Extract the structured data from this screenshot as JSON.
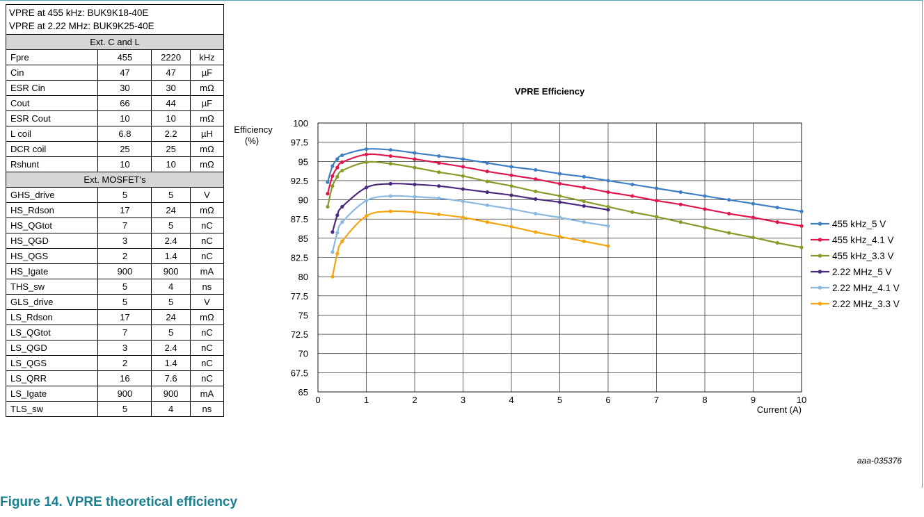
{
  "figure": {
    "caption": "Figure 14. VPRE theoretical efficiency",
    "figure_id": "aaa-035376"
  },
  "params_table": {
    "title_lines": [
      "VPRE at 455 kHz: BUK9K18-40E",
      "VPRE at 2.22 MHz: BUK9K25-40E"
    ],
    "sections": [
      {
        "header": "Ext. C and L",
        "rows": [
          [
            "Fpre",
            "455",
            "2220",
            "kHz"
          ],
          [
            "Cin",
            "47",
            "47",
            "µF"
          ],
          [
            "ESR Cin",
            "30",
            "30",
            "mΩ"
          ],
          [
            "Cout",
            "66",
            "44",
            "µF"
          ],
          [
            "ESR Cout",
            "10",
            "10",
            "mΩ"
          ],
          [
            "L coil",
            "6.8",
            "2.2",
            "µH"
          ],
          [
            "DCR coil",
            "25",
            "25",
            "mΩ"
          ],
          [
            "Rshunt",
            "10",
            "10",
            "mΩ"
          ]
        ]
      },
      {
        "header": "Ext. MOSFET's",
        "rows": [
          [
            "GHS_drive",
            "5",
            "5",
            "V"
          ],
          [
            "HS_Rdson",
            "17",
            "24",
            "mΩ"
          ],
          [
            "HS_QGtot",
            "7",
            "5",
            "nC"
          ],
          [
            "HS_QGD",
            "3",
            "2.4",
            "nC"
          ],
          [
            "HS_QGS",
            "2",
            "1.4",
            "nC"
          ],
          [
            "HS_Igate",
            "900",
            "900",
            "mA"
          ],
          [
            "THS_sw",
            "5",
            "4",
            "ns"
          ],
          [
            "GLS_drive",
            "5",
            "5",
            "V"
          ],
          [
            "LS_Rdson",
            "17",
            "24",
            "mΩ"
          ],
          [
            "LS_QGtot",
            "7",
            "5",
            "nC"
          ],
          [
            "LS_QGD",
            "3",
            "2.4",
            "nC"
          ],
          [
            "LS_QGS",
            "2",
            "1.4",
            "nC"
          ],
          [
            "LS_QRR",
            "16",
            "7.6",
            "nC"
          ],
          [
            "LS_Igate",
            "900",
            "900",
            "mA"
          ],
          [
            "TLS_sw",
            "5",
            "4",
            "ns"
          ]
        ]
      }
    ]
  },
  "chart_data": {
    "type": "line",
    "title": "VPRE Efficiency",
    "xlabel": "Current (A)",
    "ylabel_lines": [
      "Efficiency",
      "(%)"
    ],
    "xlim": [
      0,
      10
    ],
    "ylim": [
      65,
      100
    ],
    "xticks": [
      "0",
      "1",
      "2",
      "3",
      "4",
      "5",
      "6",
      "7",
      "8",
      "9",
      "10"
    ],
    "yticks": [
      "65",
      "67.5",
      "70",
      "72.5",
      "75",
      "77.5",
      "80",
      "82.5",
      "85",
      "87.5",
      "90",
      "92.5",
      "95",
      "97.5",
      "100"
    ],
    "grid": true,
    "legend_position": "right",
    "series": [
      {
        "name": "455 kHz_5 V",
        "color": "#3f7fc4",
        "x": [
          0.2,
          0.3,
          0.4,
          0.5,
          1,
          1.5,
          2,
          2.5,
          3,
          3.5,
          4,
          4.5,
          5,
          5.5,
          6,
          6.5,
          7,
          7.5,
          8,
          8.5,
          9,
          9.5,
          10
        ],
        "y": [
          92.3,
          94.4,
          95.3,
          95.8,
          96.6,
          96.5,
          96.1,
          95.7,
          95.3,
          94.8,
          94.3,
          93.9,
          93.4,
          93.0,
          92.5,
          92.0,
          91.5,
          91.0,
          90.5,
          90.0,
          89.5,
          89.0,
          88.5
        ]
      },
      {
        "name": "455 kHz_4.1 V",
        "color": "#e0174f",
        "x": [
          0.2,
          0.3,
          0.4,
          0.5,
          1,
          1.5,
          2,
          2.5,
          3,
          3.5,
          4,
          4.5,
          5,
          5.5,
          6,
          6.5,
          7,
          7.5,
          8,
          8.5,
          9,
          9.5,
          10
        ],
        "y": [
          90.8,
          93.1,
          94.2,
          94.9,
          95.9,
          95.7,
          95.3,
          94.8,
          94.3,
          93.7,
          93.2,
          92.7,
          92.1,
          91.6,
          91.0,
          90.5,
          89.9,
          89.4,
          88.8,
          88.2,
          87.7,
          87.1,
          86.6
        ]
      },
      {
        "name": "455 kHz_3.3 V",
        "color": "#8a9a2a",
        "x": [
          0.2,
          0.3,
          0.4,
          0.5,
          1,
          1.5,
          2,
          2.5,
          3,
          3.5,
          4,
          4.5,
          5,
          5.5,
          6,
          6.5,
          7,
          7.5,
          8,
          8.5,
          9,
          9.5,
          10
        ],
        "y": [
          89.1,
          91.8,
          93.0,
          93.8,
          94.9,
          94.7,
          94.2,
          93.6,
          93.1,
          92.4,
          91.8,
          91.1,
          90.5,
          89.8,
          89.1,
          88.4,
          87.8,
          87.1,
          86.4,
          85.7,
          85.1,
          84.4,
          83.8
        ]
      },
      {
        "name": "2.22 MHz_5 V",
        "color": "#4b2a7e",
        "x": [
          0.3,
          0.4,
          0.5,
          1,
          1.5,
          2,
          2.5,
          3,
          3.5,
          4,
          4.5,
          5,
          5.5,
          6
        ],
        "y": [
          85.8,
          88.0,
          89.1,
          91.6,
          92.1,
          92.0,
          91.8,
          91.4,
          91.0,
          90.6,
          90.1,
          89.7,
          89.2,
          88.7
        ]
      },
      {
        "name": "2.22 MHz_4.1 V",
        "color": "#8ab8e0",
        "x": [
          0.3,
          0.4,
          0.5,
          1,
          1.5,
          2,
          2.5,
          3,
          3.5,
          4,
          4.5,
          5,
          5.5,
          6
        ],
        "y": [
          83.2,
          85.7,
          87.1,
          89.9,
          90.5,
          90.4,
          90.2,
          89.8,
          89.3,
          88.8,
          88.2,
          87.7,
          87.1,
          86.6
        ]
      },
      {
        "name": "2.22 MHz_3.3 V",
        "color": "#f2a50f",
        "x": [
          0.3,
          0.4,
          0.5,
          1,
          1.5,
          2,
          2.5,
          3,
          3.5,
          4,
          4.5,
          5,
          5.5,
          6
        ],
        "y": [
          80.0,
          83.0,
          84.6,
          87.9,
          88.5,
          88.4,
          88.1,
          87.7,
          87.1,
          86.5,
          85.8,
          85.2,
          84.6,
          84.0
        ]
      }
    ]
  }
}
